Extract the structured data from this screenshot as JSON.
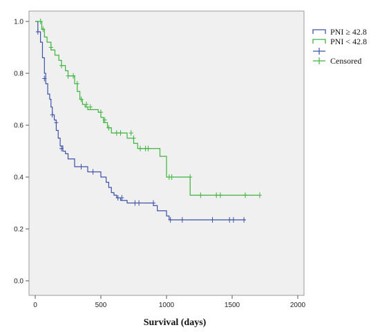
{
  "chart_data": {
    "type": "line",
    "subtype": "kaplan-meier step",
    "title": "",
    "xlabel": "Survival (days)",
    "ylabel": "",
    "xlim": [
      0,
      2000
    ],
    "ylim": [
      0,
      1
    ],
    "x_ticks": [
      0,
      500,
      1000,
      1500,
      2000
    ],
    "y_ticks": [
      0.0,
      0.2,
      0.4,
      0.6,
      0.8,
      1.0
    ],
    "x_tick_labels": [
      "0",
      "500",
      "1000",
      "1500",
      "2000"
    ],
    "y_tick_labels": [
      "0.0",
      "0.2",
      "0.4",
      "0.6",
      "0.8",
      "1.0"
    ],
    "grid": false,
    "plot_background": "#f0f0f0",
    "legend_position": "right, outside plot",
    "legend": [
      {
        "label": "PNI ≥ 42.8",
        "symbol": "step",
        "color": "#3c50a8"
      },
      {
        "label": "PNI < 42.8",
        "symbol": "step",
        "color": "#3cb43c"
      },
      {
        "label": "",
        "symbol": "censor",
        "color": "#3c50a8"
      },
      {
        "label": "Censored",
        "symbol": "censor",
        "color": "#3cb43c"
      }
    ],
    "series": [
      {
        "name": "PNI ≥ 42.8",
        "color": "#3c50a8",
        "x": [
          0,
          20,
          40,
          55,
          70,
          80,
          95,
          110,
          120,
          130,
          145,
          160,
          175,
          190,
          210,
          230,
          250,
          300,
          400,
          500,
          540,
          560,
          580,
          600,
          620,
          650,
          700,
          900,
          930,
          1000,
          1020,
          1600
        ],
        "y": [
          1.0,
          0.96,
          0.92,
          0.86,
          0.8,
          0.76,
          0.72,
          0.7,
          0.67,
          0.64,
          0.62,
          0.58,
          0.55,
          0.52,
          0.5,
          0.49,
          0.47,
          0.44,
          0.42,
          0.4,
          0.38,
          0.36,
          0.34,
          0.33,
          0.32,
          0.31,
          0.3,
          0.29,
          0.27,
          0.25,
          0.235,
          0.235
        ],
        "censored": [
          [
            20,
            0.96
          ],
          [
            70,
            0.78
          ],
          [
            130,
            0.64
          ],
          [
            160,
            0.61
          ],
          [
            200,
            0.51
          ],
          [
            350,
            0.44
          ],
          [
            440,
            0.42
          ],
          [
            630,
            0.32
          ],
          [
            660,
            0.32
          ],
          [
            760,
            0.3
          ],
          [
            790,
            0.3
          ],
          [
            900,
            0.3
          ],
          [
            1030,
            0.235
          ],
          [
            1120,
            0.235
          ],
          [
            1350,
            0.235
          ],
          [
            1480,
            0.235
          ],
          [
            1510,
            0.235
          ],
          [
            1590,
            0.235
          ]
        ]
      },
      {
        "name": "PNI < 42.8",
        "color": "#3cb43c",
        "x": [
          0,
          50,
          70,
          90,
          120,
          150,
          180,
          200,
          230,
          250,
          300,
          320,
          340,
          360,
          380,
          400,
          480,
          500,
          520,
          550,
          580,
          600,
          700,
          750,
          780,
          950,
          1000,
          1180,
          1700
        ],
        "y": [
          1.0,
          0.97,
          0.94,
          0.92,
          0.89,
          0.87,
          0.85,
          0.83,
          0.81,
          0.79,
          0.76,
          0.73,
          0.7,
          0.68,
          0.67,
          0.66,
          0.65,
          0.63,
          0.61,
          0.59,
          0.57,
          0.57,
          0.55,
          0.53,
          0.51,
          0.48,
          0.4,
          0.33,
          0.33
        ],
        "censored": [
          [
            40,
            1.0
          ],
          [
            60,
            0.97
          ],
          [
            120,
            0.9
          ],
          [
            200,
            0.83
          ],
          [
            250,
            0.79
          ],
          [
            290,
            0.79
          ],
          [
            320,
            0.76
          ],
          [
            350,
            0.7
          ],
          [
            390,
            0.68
          ],
          [
            420,
            0.67
          ],
          [
            500,
            0.65
          ],
          [
            530,
            0.62
          ],
          [
            560,
            0.59
          ],
          [
            620,
            0.57
          ],
          [
            650,
            0.57
          ],
          [
            730,
            0.57
          ],
          [
            750,
            0.55
          ],
          [
            800,
            0.51
          ],
          [
            840,
            0.51
          ],
          [
            860,
            0.51
          ],
          [
            1020,
            0.4
          ],
          [
            1040,
            0.4
          ],
          [
            1180,
            0.4
          ],
          [
            1260,
            0.33
          ],
          [
            1380,
            0.33
          ],
          [
            1410,
            0.33
          ],
          [
            1600,
            0.33
          ],
          [
            1710,
            0.33
          ]
        ]
      }
    ]
  }
}
